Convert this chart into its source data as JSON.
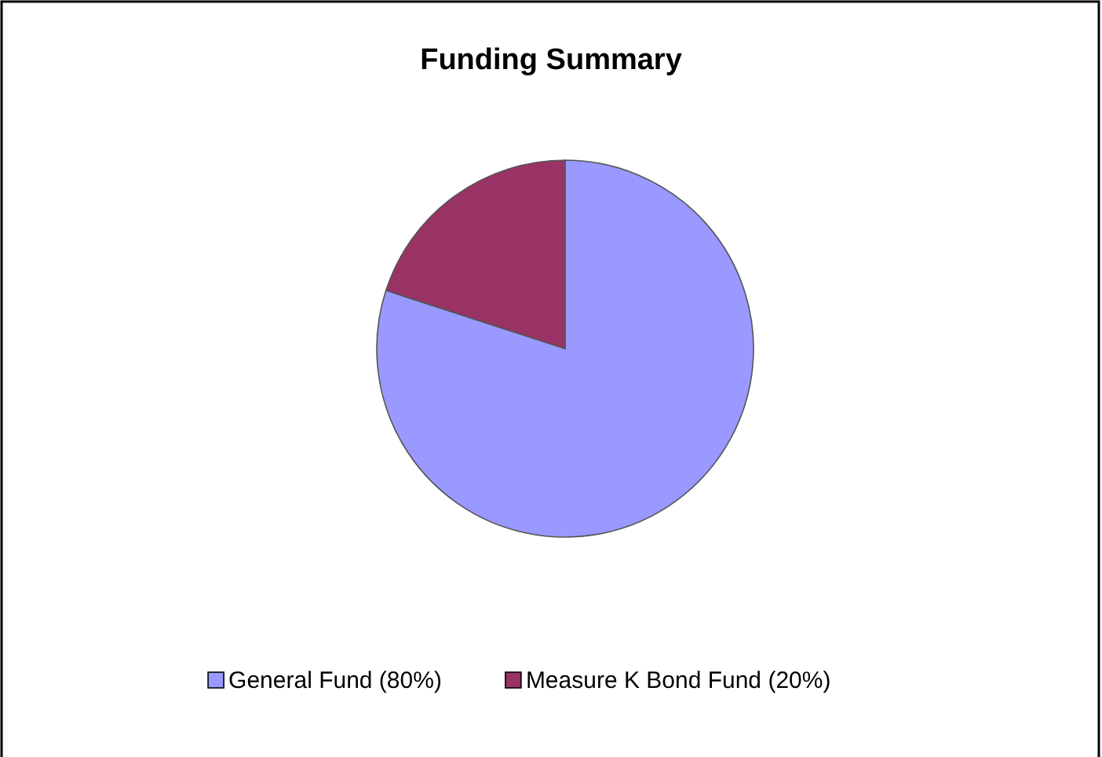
{
  "chart_data": {
    "type": "pie",
    "title": "Funding Summary",
    "categories": [
      "General Fund (80%)",
      "Measure K Bond Fund (20%)"
    ],
    "values": [
      80,
      20
    ],
    "colors": [
      "#9999ff",
      "#993366"
    ],
    "legend": "bottom"
  }
}
